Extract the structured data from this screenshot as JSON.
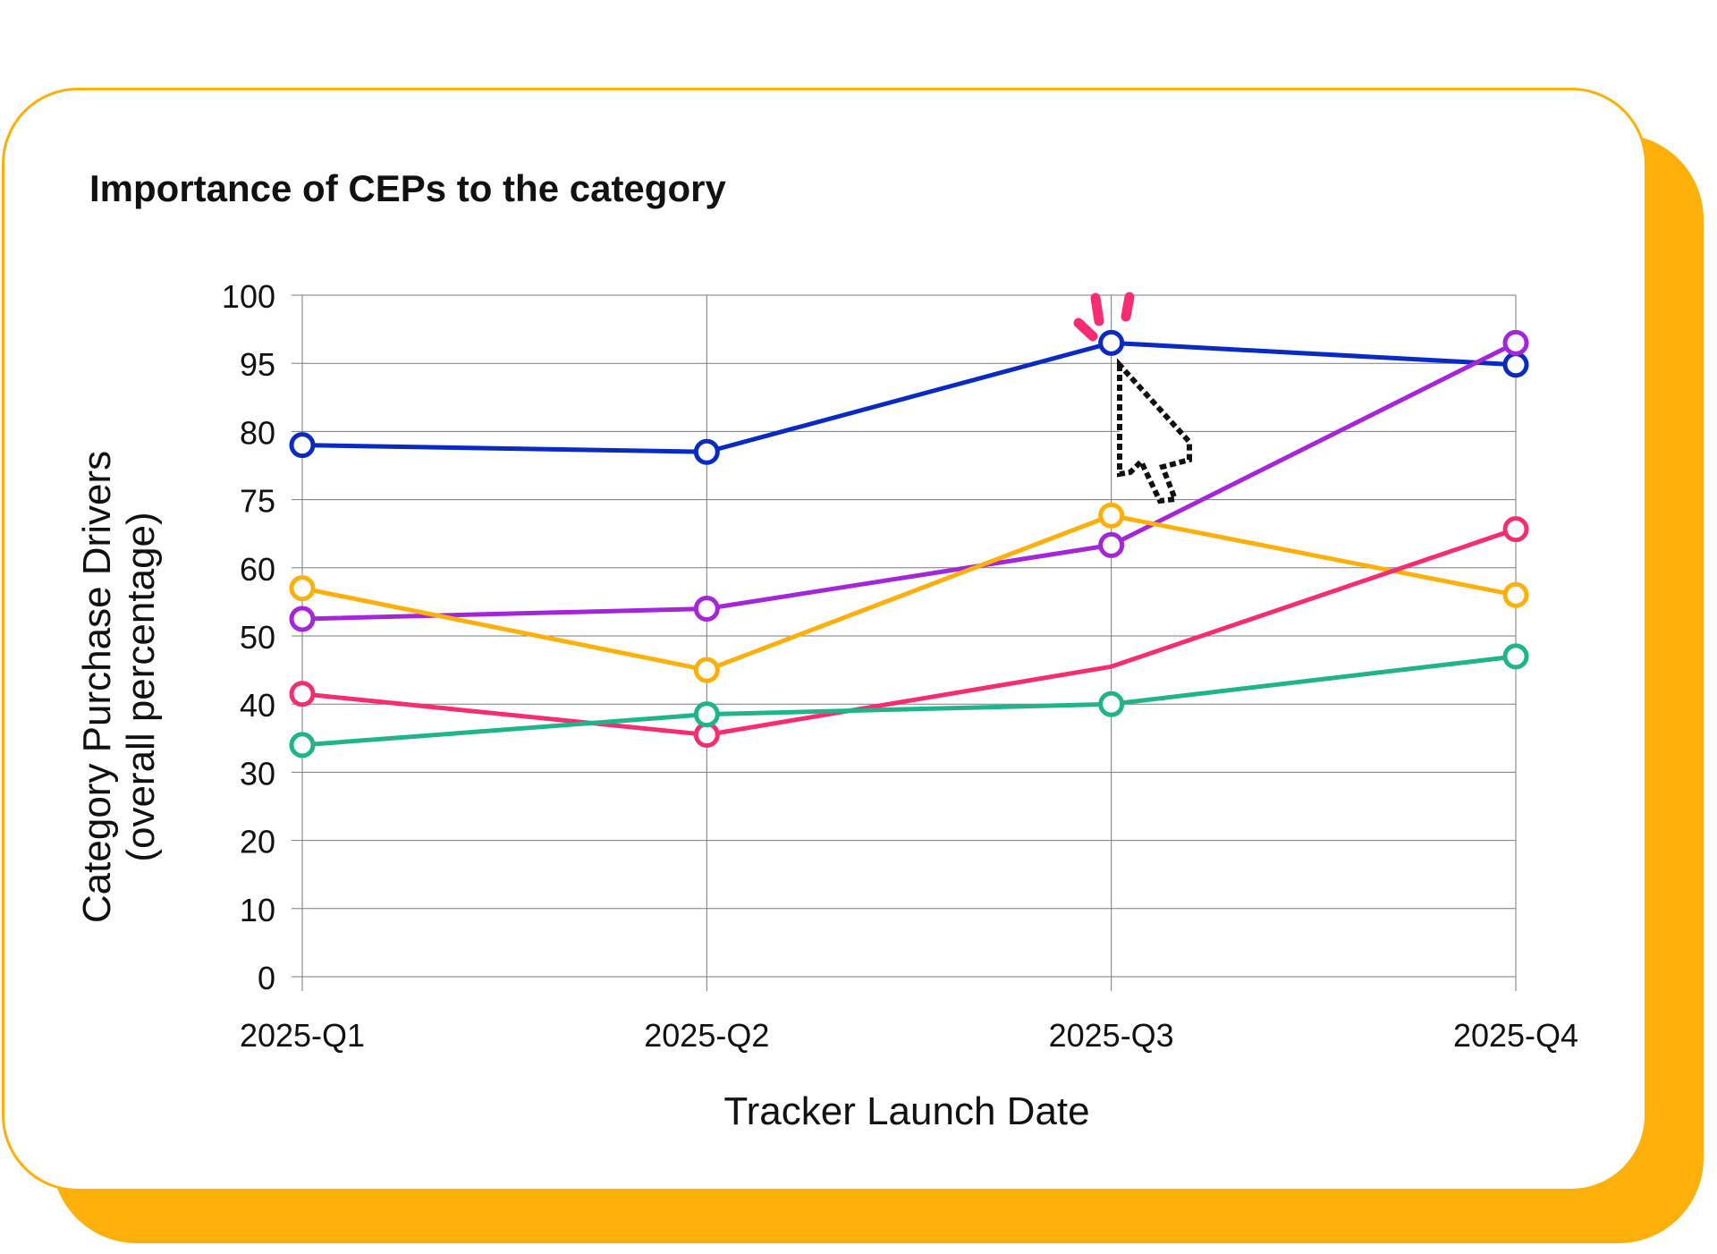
{
  "title": "Importance of CEPs to the category",
  "chart_data": {
    "type": "line",
    "title": "Importance of CEPs to the category",
    "xlabel": "Tracker Launch Date",
    "ylabel_line1": "Category Purchase Drivers",
    "ylabel_line2": "(overall percentage)",
    "categories": [
      "2025-Q1",
      "2025-Q2",
      "2025-Q3",
      "2025-Q4"
    ],
    "y_ticks": [
      "0",
      "10",
      "20",
      "30",
      "40",
      "50",
      "60",
      "75",
      "80",
      "95",
      "100"
    ],
    "y_axis_note": "tick labels are evenly spaced but non-linear; values below are read in tick units",
    "grid": true,
    "series": [
      {
        "color": "#0A2BC2",
        "values": [
          79,
          78.5,
          96.5,
          94.7
        ]
      },
      {
        "color": "#A526D9",
        "values": [
          52.5,
          54,
          65,
          96.5
        ]
      },
      {
        "color": "#FDB00A",
        "values": [
          57,
          45,
          71.5,
          56
        ]
      },
      {
        "color": "#F72D73",
        "values": [
          41.5,
          35.5,
          45.5,
          68.5
        ]
      },
      {
        "color": "#1FB489",
        "values": [
          34,
          38.5,
          40,
          47
        ]
      }
    ],
    "markers_hidden": [
      [
        3,
        2
      ]
    ],
    "cursor_target": {
      "series": 0,
      "category": "2025-Q3"
    }
  }
}
